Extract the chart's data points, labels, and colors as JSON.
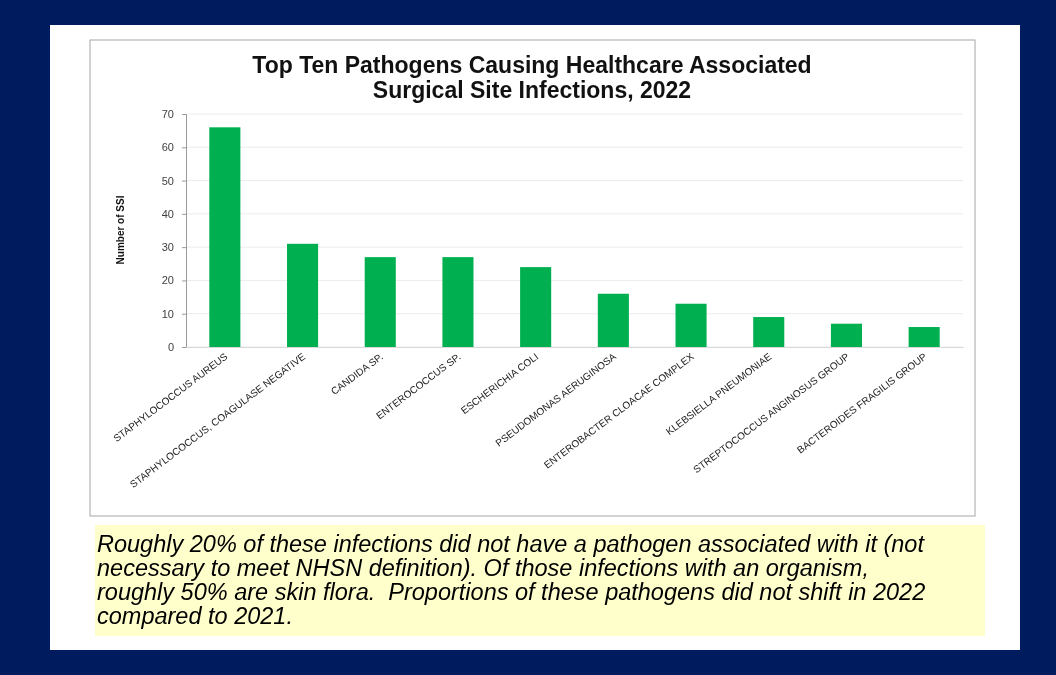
{
  "chart_data": {
    "type": "bar",
    "title": "Top Ten Pathogens Causing Healthcare Associated Surgical Site Infections, 2022",
    "ylabel": "Number of SSI",
    "categories": [
      "STAPHYLOCOCCUS AUREUS",
      "STAPHYLOCOCCUS, COAGULASE NEGATIVE",
      "CANDIDA SP.",
      "ENTEROCOCCUS SP.",
      "ESCHERICHIA COLI",
      "PSEUDOMONAS AERUGINOSA",
      "ENTEROBACTER CLOACAE COMPLEX",
      "KLEBSIELLA PNEUMONIAE",
      "STREPTOCOCCUS ANGINOSUS GROUP",
      "BACTEROIDES FRAGILIS GROUP"
    ],
    "values": [
      66,
      31,
      27,
      27,
      24,
      16,
      13,
      9,
      7,
      6
    ],
    "color": "#00b050",
    "ylim": [
      0,
      70
    ],
    "yticks": [
      0,
      10,
      20,
      30,
      40,
      50,
      60,
      70
    ],
    "grid": "y",
    "annotations": [
      "Roughly 20% of these infections did not have a pathogen associated with it (not\nnecessary to meet NHSN definition). Of those infections with an organism,\nroughly 50% are skin flora.  Proportions of these pathogens did not shift in 2022\ncompared to 2021."
    ]
  }
}
